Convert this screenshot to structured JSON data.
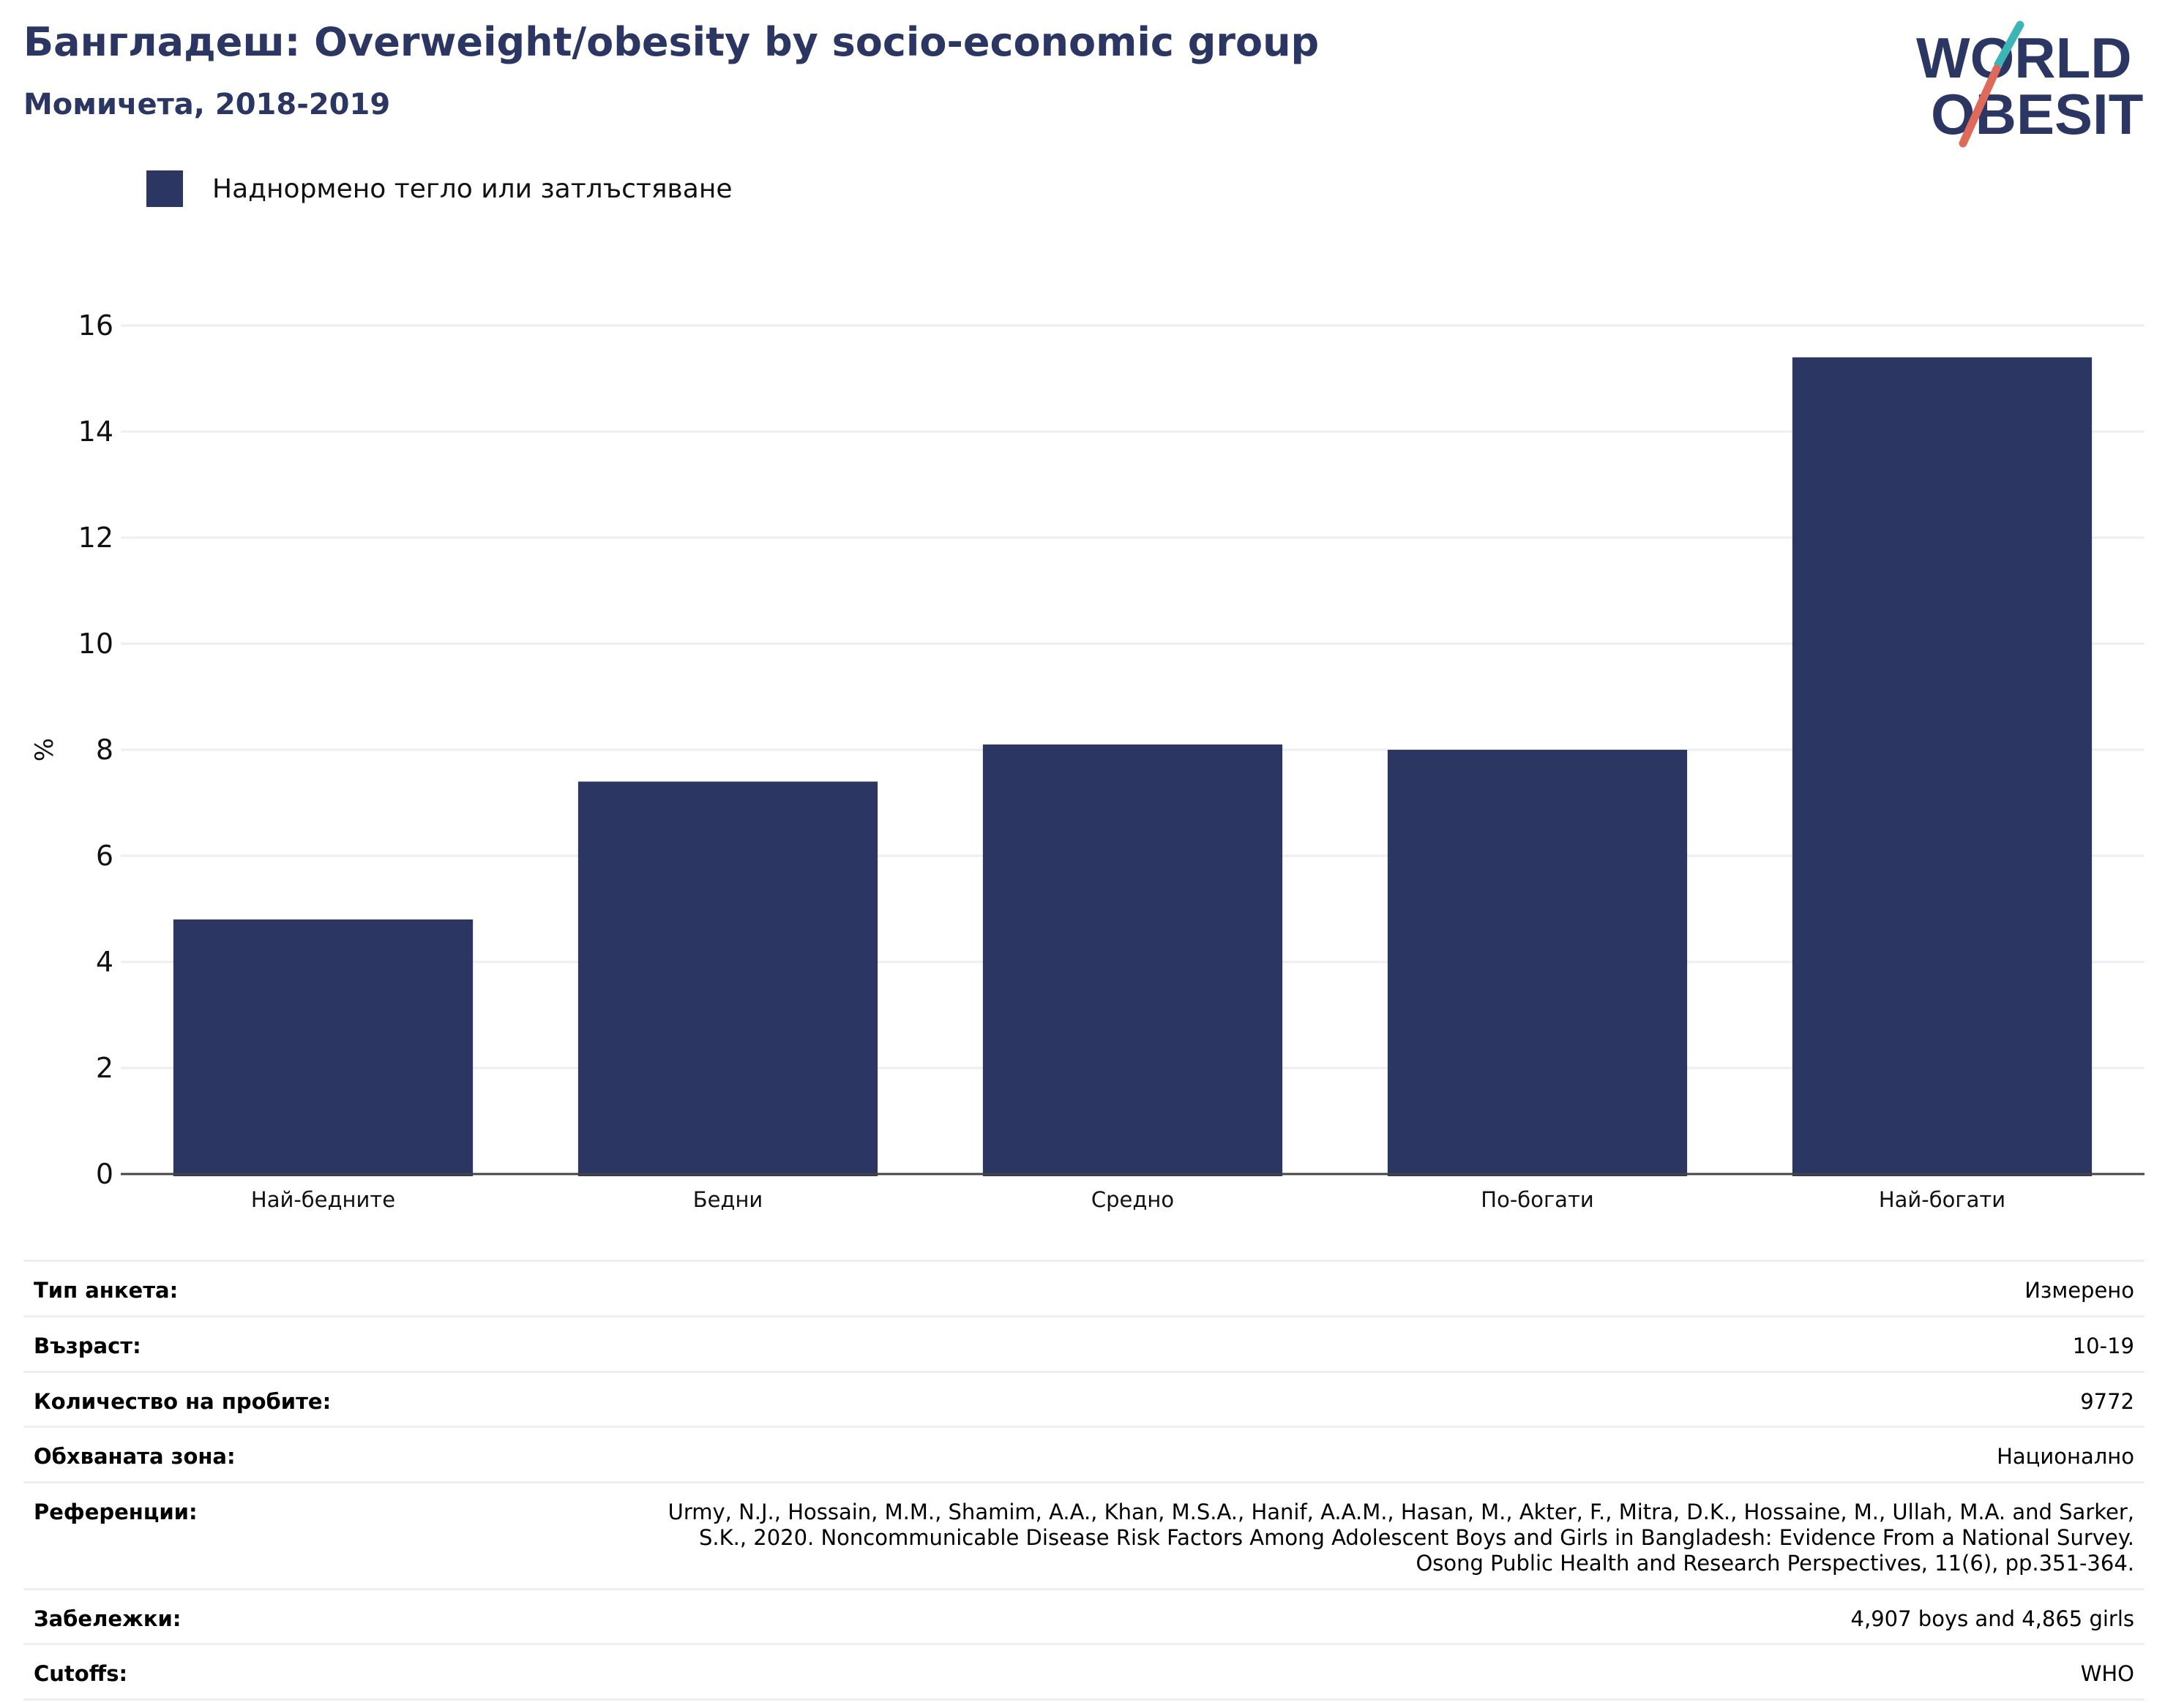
{
  "header": {
    "title": "Бангладеш: Overweight/obesity by socio-economic group",
    "subtitle": "Момичета, 2018-2019"
  },
  "logo": {
    "line1": "WORLD",
    "line2": "OBESITY",
    "colors": {
      "text": "#2b3663",
      "slash_top": "#3bb5b5",
      "slash_bottom": "#e06a5a"
    }
  },
  "legend": {
    "label": "Наднормено тегло или затлъстяване",
    "color": "#2b3663"
  },
  "chart_data": {
    "type": "bar",
    "categories": [
      "Най-бедните",
      "Бедни",
      "Средно",
      "По-богати",
      "Най-богати"
    ],
    "series": [
      {
        "name": "Наднормено тегло или затлъстяване",
        "values": [
          4.8,
          7.4,
          8.1,
          8.0,
          15.4
        ],
        "color": "#2b3663"
      }
    ],
    "ylabel": "%",
    "ylim": [
      0,
      16
    ],
    "yticks": [
      0,
      2,
      4,
      6,
      8,
      10,
      12,
      14,
      16
    ],
    "grid": true,
    "legend_position": "top-left"
  },
  "meta": {
    "survey_type": {
      "label": "Тип анкета:",
      "value": "Измерено"
    },
    "age": {
      "label": "Възраст:",
      "value": "10-19"
    },
    "sample_size": {
      "label": "Количество на пробите:",
      "value": "9772"
    },
    "coverage": {
      "label": "Обхваната зона:",
      "value": "Национално"
    },
    "references": {
      "label": "Референции:",
      "lines": [
        "Urmy, N.J., Hossain, M.M., Shamim, A.A., Khan, M.S.A., Hanif, A.A.M., Hasan, M., Akter, F., Mitra, D.K., Hossaine, M., Ullah, M.A. and Sarker,",
        "S.K., 2020. Noncommunicable Disease Risk Factors Among Adolescent Boys and Girls in Bangladesh: Evidence From a National Survey.",
        "Osong Public Health and Research Perspectives, 11(6), pp.351-364."
      ]
    },
    "notes": {
      "label": "Забележки:",
      "value": "4,907 boys and 4,865 girls"
    },
    "cutoffs": {
      "label": "Cutoffs:",
      "value": "WHO"
    }
  }
}
